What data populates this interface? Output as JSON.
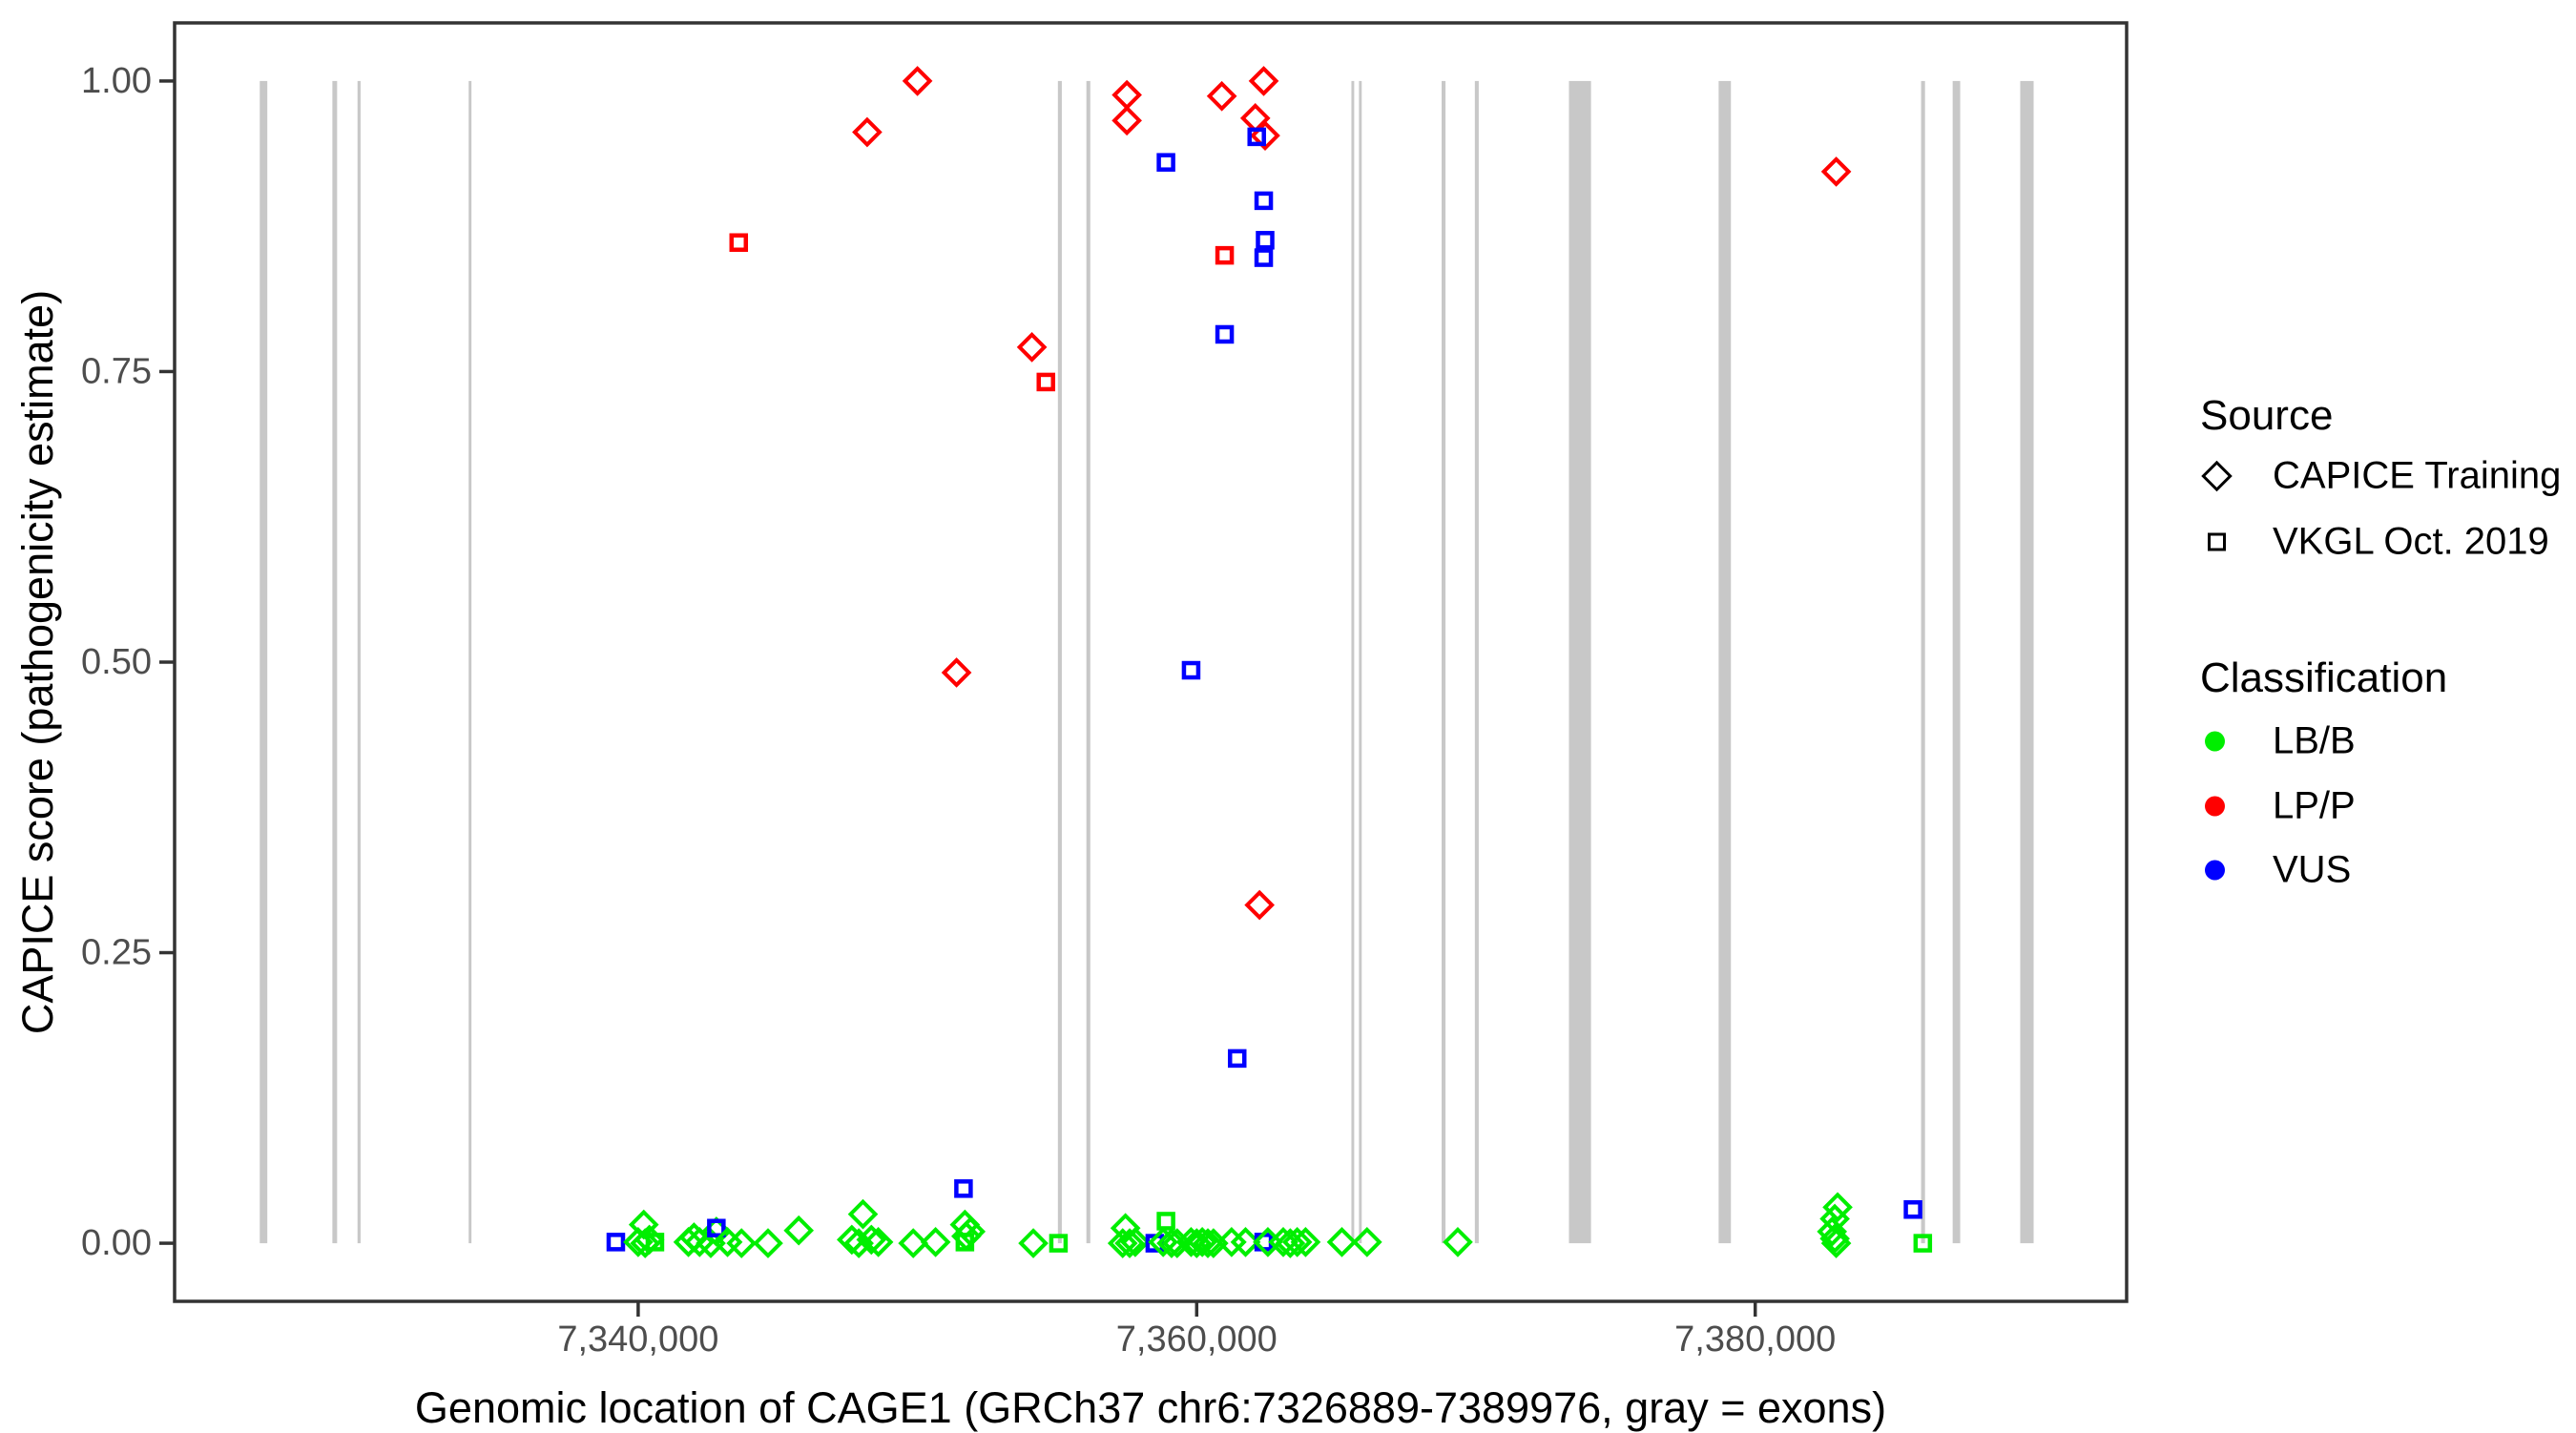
{
  "chart_data": {
    "type": "scatter",
    "title": "",
    "xlabel": "Genomic location of CAGE1 (GRCh37 chr6:7326889-7389976, gray = exons)",
    "ylabel": "CAPICE score (pathogenicity estimate)",
    "xlim": [
      7323400,
      7393300
    ],
    "ylim": [
      -0.05,
      1.05
    ],
    "grid": false,
    "x_ticks": [
      {
        "value": 7340000,
        "label": "7,340,000"
      },
      {
        "value": 7360000,
        "label": "7,360,000"
      },
      {
        "value": 7380000,
        "label": "7,380,000"
      }
    ],
    "y_ticks": [
      {
        "value": 0.0,
        "label": "0.00"
      },
      {
        "value": 0.25,
        "label": "0.25"
      },
      {
        "value": 0.5,
        "label": "0.50"
      },
      {
        "value": 0.75,
        "label": "0.75"
      },
      {
        "value": 1.0,
        "label": "1.00"
      }
    ],
    "colors": {
      "LB/B": "#00ee00",
      "LP/P": "#ff0000",
      "VUS": "#0000ff",
      "exon": "#c8c8c8",
      "axis": "#333333",
      "tick_text": "#4d4d4d"
    },
    "exons": [
      [
        7326450,
        7326720
      ],
      [
        7329050,
        7329220
      ],
      [
        7329950,
        7330060
      ],
      [
        7333930,
        7334030
      ],
      [
        7355030,
        7355170
      ],
      [
        7356050,
        7356190
      ],
      [
        7365540,
        7365640
      ],
      [
        7365810,
        7365910
      ],
      [
        7368770,
        7368910
      ],
      [
        7369960,
        7370100
      ],
      [
        7373330,
        7374120
      ],
      [
        7378690,
        7379130
      ],
      [
        7385940,
        7386080
      ],
      [
        7387070,
        7387340
      ],
      [
        7389490,
        7389970
      ]
    ],
    "point_fields": [
      "genomic_position",
      "capice_score",
      "source (T=CAPICE Training diamond, V=VKGL Oct. 2019 square)",
      "classification"
    ],
    "points": [
      [
        7350000,
        1.0,
        "T",
        "LP/P"
      ],
      [
        7362400,
        1.0,
        "T",
        "LP/P"
      ],
      [
        7357500,
        0.988,
        "T",
        "LP/P"
      ],
      [
        7360900,
        0.987,
        "T",
        "LP/P"
      ],
      [
        7362100,
        0.968,
        "T",
        "LP/P"
      ],
      [
        7357500,
        0.966,
        "T",
        "LP/P"
      ],
      [
        7348200,
        0.956,
        "T",
        "LP/P"
      ],
      [
        7362450,
        0.953,
        "T",
        "LP/P"
      ],
      [
        7362150,
        0.952,
        "V",
        "VUS"
      ],
      [
        7358900,
        0.93,
        "V",
        "VUS"
      ],
      [
        7382900,
        0.922,
        "T",
        "LP/P"
      ],
      [
        7362400,
        0.897,
        "V",
        "VUS"
      ],
      [
        7362450,
        0.863,
        "V",
        "VUS"
      ],
      [
        7343600,
        0.861,
        "V",
        "LP/P"
      ],
      [
        7361000,
        0.85,
        "V",
        "LP/P"
      ],
      [
        7362400,
        0.848,
        "V",
        "VUS"
      ],
      [
        7361000,
        0.782,
        "V",
        "VUS"
      ],
      [
        7354100,
        0.771,
        "T",
        "LP/P"
      ],
      [
        7354600,
        0.741,
        "V",
        "LP/P"
      ],
      [
        7351400,
        0.491,
        "T",
        "LP/P"
      ],
      [
        7359800,
        0.493,
        "V",
        "VUS"
      ],
      [
        7362250,
        0.291,
        "T",
        "LP/P"
      ],
      [
        7361450,
        0.159,
        "V",
        "VUS"
      ],
      [
        7351650,
        0.047,
        "V",
        "VUS"
      ],
      [
        7385650,
        0.029,
        "V",
        "VUS"
      ],
      [
        7339200,
        0.001,
        "V",
        "VUS"
      ],
      [
        7340200,
        0.016,
        "T",
        "LB/B"
      ],
      [
        7340000,
        0.001,
        "T",
        "LB/B"
      ],
      [
        7340250,
        0.0,
        "T",
        "LB/B"
      ],
      [
        7340400,
        0.003,
        "T",
        "LB/B"
      ],
      [
        7340600,
        0.001,
        "V",
        "LB/B"
      ],
      [
        7341800,
        0.001,
        "T",
        "LB/B"
      ],
      [
        7342000,
        0.005,
        "T",
        "LB/B"
      ],
      [
        7342200,
        0.001,
        "T",
        "LB/B"
      ],
      [
        7342600,
        0.0,
        "T",
        "LB/B"
      ],
      [
        7342800,
        0.01,
        "T",
        "LB/B"
      ],
      [
        7342800,
        0.013,
        "V",
        "VUS"
      ],
      [
        7343200,
        0.001,
        "T",
        "LB/B"
      ],
      [
        7343700,
        0.0,
        "T",
        "LB/B"
      ],
      [
        7344650,
        0.0,
        "T",
        "LB/B"
      ],
      [
        7345750,
        0.011,
        "T",
        "LB/B"
      ],
      [
        7347650,
        0.003,
        "T",
        "LB/B"
      ],
      [
        7347900,
        0.0,
        "T",
        "LB/B"
      ],
      [
        7348050,
        0.025,
        "T",
        "LB/B"
      ],
      [
        7348350,
        0.003,
        "T",
        "LB/B"
      ],
      [
        7348600,
        0.001,
        "T",
        "LB/B"
      ],
      [
        7349850,
        0.0,
        "T",
        "LB/B"
      ],
      [
        7350650,
        0.001,
        "T",
        "LB/B"
      ],
      [
        7351700,
        0.016,
        "T",
        "LB/B"
      ],
      [
        7351700,
        0.001,
        "V",
        "LB/B"
      ],
      [
        7351750,
        0.006,
        "T",
        "LB/B"
      ],
      [
        7351900,
        0.01,
        "T",
        "LB/B"
      ],
      [
        7354150,
        0.0,
        "T",
        "LB/B"
      ],
      [
        7355050,
        0.0,
        "V",
        "LB/B"
      ],
      [
        7357350,
        0.0,
        "T",
        "LB/B"
      ],
      [
        7357450,
        0.013,
        "T",
        "LB/B"
      ],
      [
        7357600,
        0.0,
        "T",
        "LB/B"
      ],
      [
        7357800,
        0.001,
        "T",
        "LB/B"
      ],
      [
        7358500,
        0.0,
        "V",
        "VUS"
      ],
      [
        7358800,
        0.001,
        "T",
        "LB/B"
      ],
      [
        7358900,
        0.019,
        "V",
        "LB/B"
      ],
      [
        7359100,
        0.0,
        "T",
        "LB/B"
      ],
      [
        7359300,
        0.0,
        "T",
        "LB/B"
      ],
      [
        7359800,
        0.001,
        "T",
        "LB/B"
      ],
      [
        7360000,
        0.0,
        "T",
        "LB/B"
      ],
      [
        7360200,
        0.001,
        "T",
        "LB/B"
      ],
      [
        7360400,
        0.0,
        "T",
        "LB/B"
      ],
      [
        7360600,
        0.0,
        "T",
        "LB/B"
      ],
      [
        7361250,
        0.001,
        "T",
        "LB/B"
      ],
      [
        7361750,
        0.001,
        "T",
        "LB/B"
      ],
      [
        7362400,
        0.001,
        "V",
        "VUS"
      ],
      [
        7362550,
        0.001,
        "T",
        "LB/B"
      ],
      [
        7363100,
        0.001,
        "T",
        "LB/B"
      ],
      [
        7363350,
        0.0,
        "T",
        "LB/B"
      ],
      [
        7363600,
        0.001,
        "T",
        "LB/B"
      ],
      [
        7363900,
        0.001,
        "T",
        "LB/B"
      ],
      [
        7365200,
        0.001,
        "T",
        "LB/B"
      ],
      [
        7366100,
        0.001,
        "T",
        "LB/B"
      ],
      [
        7369350,
        0.001,
        "T",
        "LB/B"
      ],
      [
        7382950,
        0.031,
        "T",
        "LB/B"
      ],
      [
        7382850,
        0.021,
        "T",
        "LB/B"
      ],
      [
        7382750,
        0.01,
        "T",
        "LB/B"
      ],
      [
        7382850,
        0.004,
        "T",
        "LB/B"
      ],
      [
        7382900,
        0.0,
        "T",
        "LB/B"
      ],
      [
        7386000,
        0.0,
        "V",
        "LB/B"
      ]
    ]
  },
  "legend": {
    "source": {
      "title": "Source",
      "items": [
        {
          "label": "CAPICE Training",
          "glyph": "open-diamond"
        },
        {
          "label": "VKGL Oct. 2019",
          "glyph": "open-square"
        }
      ]
    },
    "classification": {
      "title": "Classification",
      "items": [
        {
          "label": "LB/B",
          "color": "#00ee00"
        },
        {
          "label": "LP/P",
          "color": "#ff0000"
        },
        {
          "label": "VUS",
          "color": "#0000ff"
        }
      ]
    }
  }
}
